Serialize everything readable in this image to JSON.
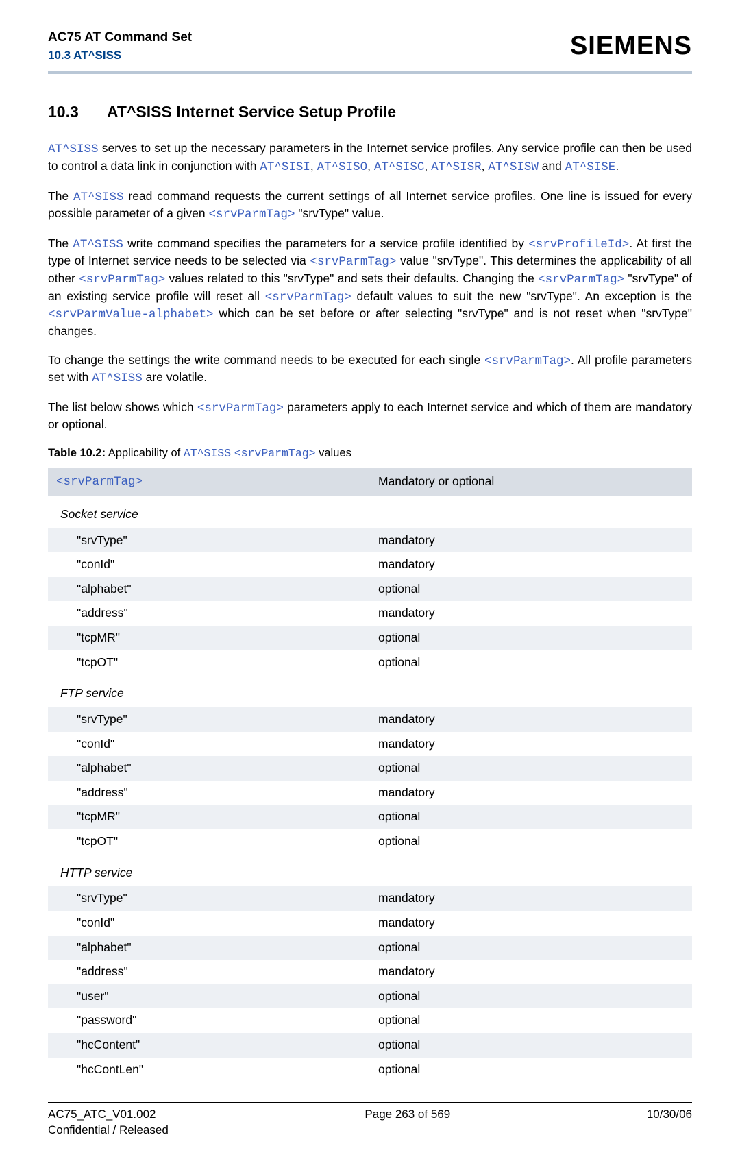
{
  "header": {
    "title": "AC75 AT Command Set",
    "subtitle": "10.3 AT^SISS",
    "brand": "SIEMENS"
  },
  "section": {
    "num": "10.3",
    "title": "AT^SISS   Internet Service Setup Profile"
  },
  "para1": {
    "t1": "AT^SISS",
    "t2": " serves to set up the necessary parameters in the Internet service profiles. Any service profile can then be used to control a data link in conjunction with ",
    "c1": "AT^SISI",
    "s1": ", ",
    "c2": "AT^SISO",
    "s2": ", ",
    "c3": "AT^SISC",
    "s3": ", ",
    "c4": "AT^SISR",
    "s4": ", ",
    "c5": "AT^SISW",
    "s5": " and ",
    "c6": "AT^SISE",
    "s6": "."
  },
  "para2": {
    "t1": "The ",
    "c1": "AT^SISS",
    "t2": " read command requests the current settings of all Internet service profiles. One line is issued for every possible parameter of a given ",
    "c2": "<srvParmTag>",
    "t3": " \"srvType\" value."
  },
  "para3": {
    "t1": "The ",
    "c1": "AT^SISS",
    "t2": " write command specifies the parameters for a service profile identified by ",
    "c2": "<srvProfileId>",
    "t3": ". At first the type of Internet service needs to be selected via ",
    "c3": "<srvParmTag>",
    "t4": " value \"srvType\". This determines the applicability of all other ",
    "c4": "<srvParmTag>",
    "t5": " values related to this \"srvType\" and sets their defaults. Changing the ",
    "c5": "<srvParmTag>",
    "t6": " \"srvType\" of an existing service profile will reset all ",
    "c6": "<srvParmTag>",
    "t7": " default values to suit the new \"srvType\". An exception is the ",
    "c7": "<srvParmValue-alphabet>",
    "t8": " which can be set before or after selecting \"srvType\" and is not reset when \"srvType\" changes."
  },
  "para4": {
    "t1": "To change the settings the write command needs to be executed for each single ",
    "c1": "<srvParmTag>",
    "t2": ". All profile parameters set with ",
    "c2": "AT^SISS",
    "t3": " are volatile."
  },
  "para5": {
    "t1": "The list below shows which ",
    "c1": "<srvParmTag>",
    "t2": " parameters apply to each Internet service and which of them are mandatory or optional."
  },
  "table": {
    "caption_bold": "Table 10.2:",
    "caption_txt1": "   Applicability of ",
    "caption_code1": "AT^SISS",
    "caption_txt2": " ",
    "caption_code2": "<srvParmTag>",
    "caption_txt3": " values",
    "col1_header": "<srvParmTag>",
    "col2_header": "Mandatory or optional",
    "groups": [
      {
        "title": "Socket service",
        "rows": [
          {
            "k": "\"srvType\"",
            "v": "mandatory"
          },
          {
            "k": "\"conId\"",
            "v": "mandatory"
          },
          {
            "k": "\"alphabet\"",
            "v": "optional"
          },
          {
            "k": "\"address\"",
            "v": "mandatory"
          },
          {
            "k": "\"tcpMR\"",
            "v": "optional"
          },
          {
            "k": "\"tcpOT\"",
            "v": "optional"
          }
        ]
      },
      {
        "title": "FTP service",
        "rows": [
          {
            "k": "\"srvType\"",
            "v": "mandatory"
          },
          {
            "k": "\"conId\"",
            "v": "mandatory"
          },
          {
            "k": "\"alphabet\"",
            "v": "optional"
          },
          {
            "k": "\"address\"",
            "v": "mandatory"
          },
          {
            "k": "\"tcpMR\"",
            "v": "optional"
          },
          {
            "k": "\"tcpOT\"",
            "v": "optional"
          }
        ]
      },
      {
        "title": "HTTP service",
        "rows": [
          {
            "k": "\"srvType\"",
            "v": "mandatory"
          },
          {
            "k": "\"conId\"",
            "v": "mandatory"
          },
          {
            "k": "\"alphabet\"",
            "v": "optional"
          },
          {
            "k": "\"address\"",
            "v": "mandatory"
          },
          {
            "k": "\"user\"",
            "v": "optional"
          },
          {
            "k": "\"password\"",
            "v": "optional"
          },
          {
            "k": "\"hcContent\"",
            "v": "optional"
          },
          {
            "k": "\"hcContLen\"",
            "v": "optional"
          }
        ]
      }
    ]
  },
  "footer": {
    "left1": "AC75_ATC_V01.002",
    "left2": "Confidential / Released",
    "center": "Page 263 of 569",
    "right": "10/30/06"
  },
  "colors": {
    "link": "#3b5fbf",
    "accent_dark": "#004289",
    "hr": "#b9c7d6",
    "row_odd": "#edf0f4",
    "th_bg": "#d9dee5"
  }
}
